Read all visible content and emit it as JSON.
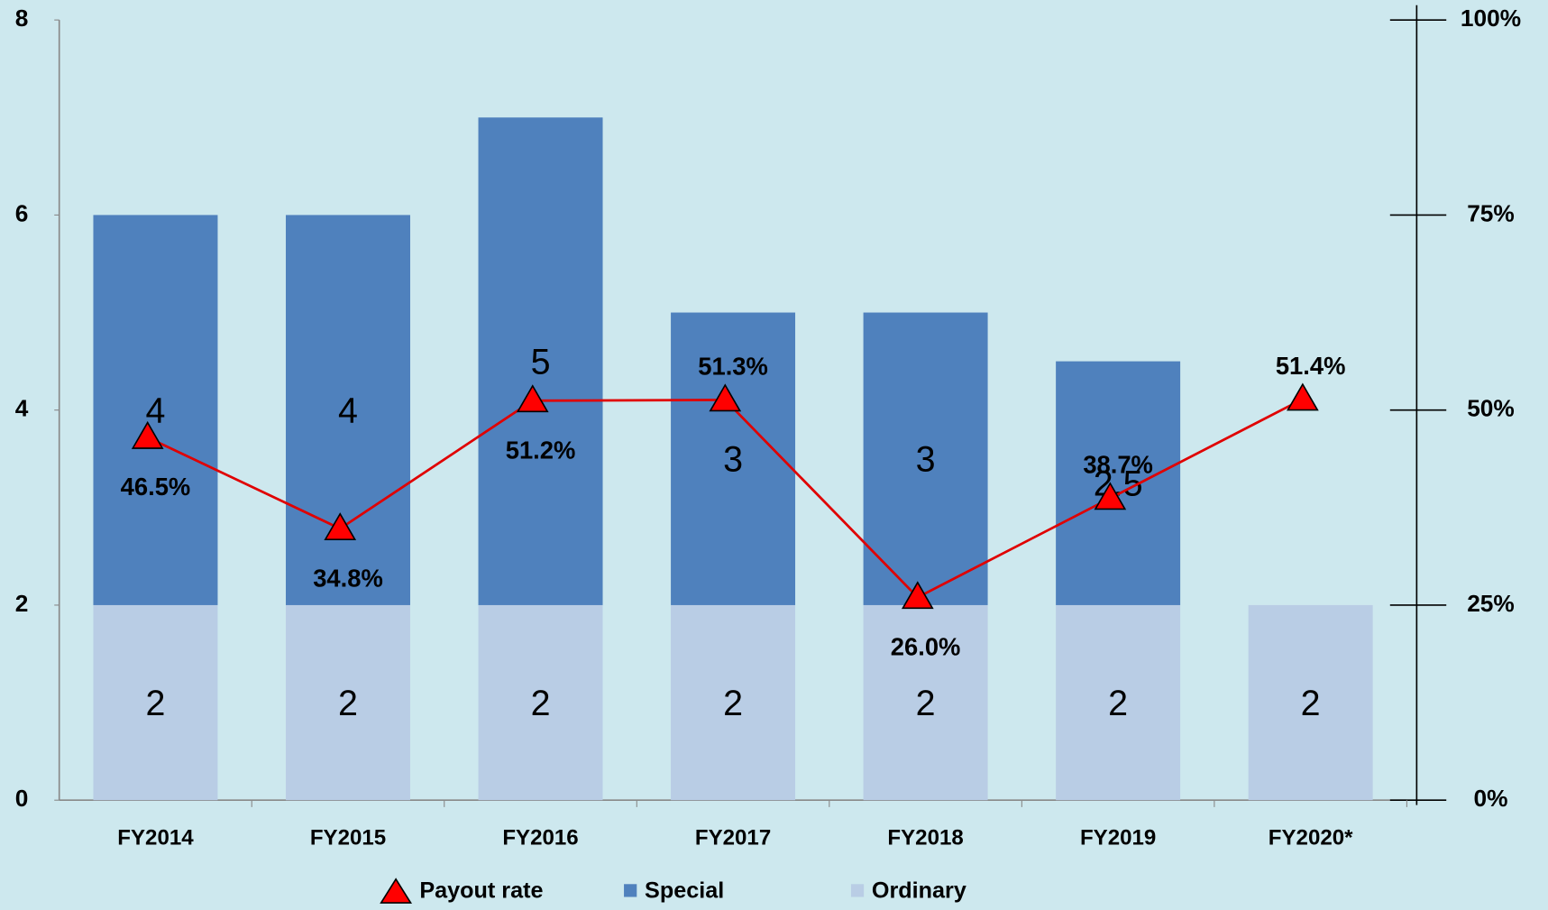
{
  "chart_data": {
    "type": "bar",
    "stacked": true,
    "categories": [
      "FY2014",
      "FY2015",
      "FY2016",
      "FY2017",
      "FY2018",
      "FY2019",
      "FY2020*"
    ],
    "series": [
      {
        "name": "Ordinary",
        "color": "#b9cde5",
        "values": [
          2,
          2,
          2,
          2,
          2,
          2,
          2
        ]
      },
      {
        "name": "Special",
        "color": "#4f81bd",
        "values": [
          4,
          4,
          5,
          3,
          3,
          2.5,
          null
        ]
      },
      {
        "name": "Payout rate",
        "type": "line",
        "axis": "y2",
        "color": "#e00000",
        "values": [
          46.5,
          34.8,
          51.2,
          51.3,
          26.0,
          38.7,
          51.4
        ],
        "value_labels": [
          "46.5%",
          "34.8%",
          "51.2%",
          "51.3%",
          "26.0%",
          "38.7%",
          "51.4%"
        ]
      }
    ],
    "ylim": [
      0,
      8
    ],
    "yticks": [
      0,
      2,
      4,
      6,
      8
    ],
    "y2lim": [
      0,
      100
    ],
    "y2ticks": [
      {
        "value": 0,
        "label": "0%"
      },
      {
        "value": 25,
        "label": "25%"
      },
      {
        "value": 50,
        "label": "50%"
      },
      {
        "value": 75,
        "label": "75%"
      },
      {
        "value": 100,
        "label": "100%"
      }
    ],
    "legend": "bottom"
  }
}
